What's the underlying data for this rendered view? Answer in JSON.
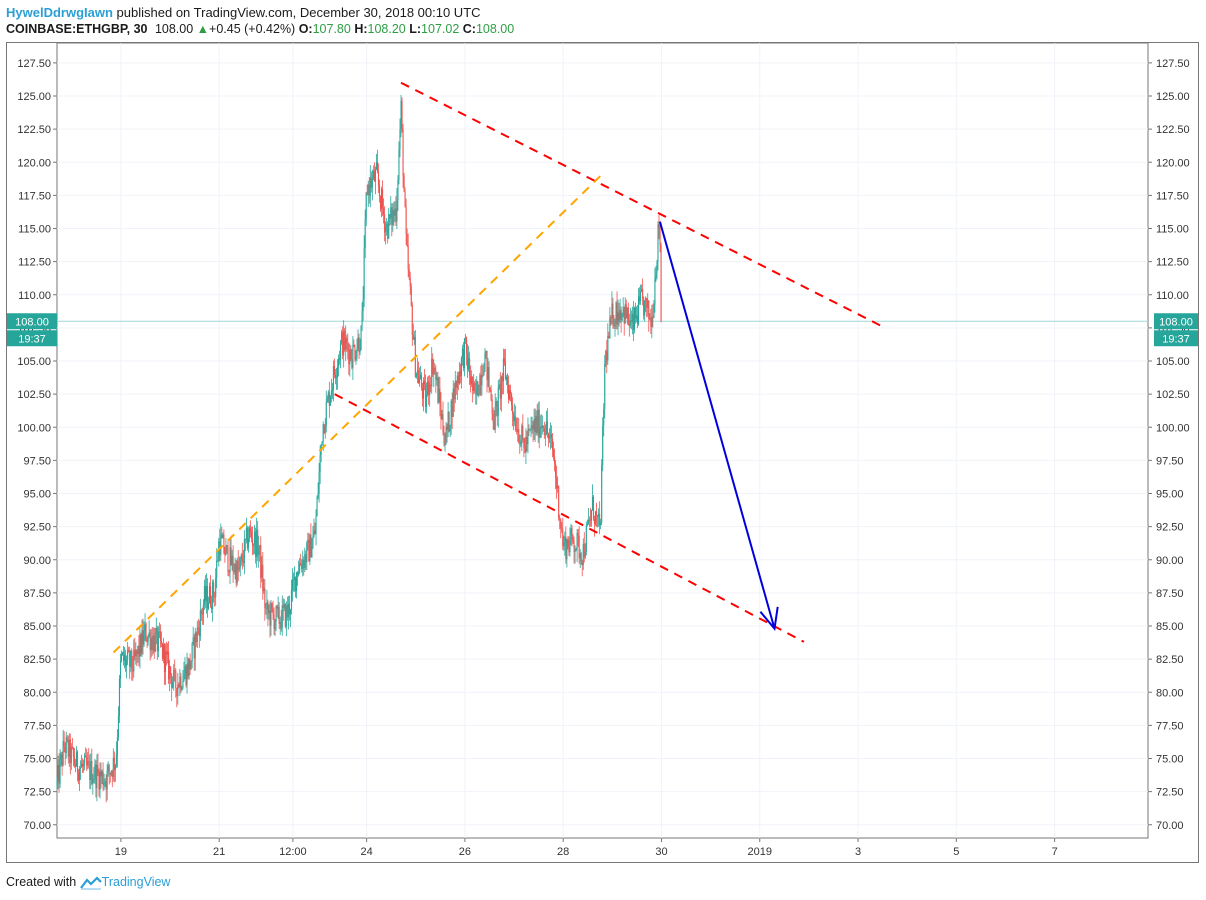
{
  "header": {
    "author": "HywelDdrwgIawn",
    "published": "published on TradingView.com, December 30, 2018 00:10 UTC",
    "symbol": "COINBASE:ETHGBP, 30",
    "last": "108.00",
    "change": "+0.45 (+0.42%)",
    "o_label": "O:",
    "o_value": "107.80",
    "h_label": "H:",
    "h_value": "108.20",
    "l_label": "L:",
    "l_value": "107.02",
    "c_label": "C:",
    "c_value": "108.00"
  },
  "footer": {
    "created": "Created with",
    "brand": "TradingView"
  },
  "chart_data": {
    "type": "candlestick",
    "symbol": "COINBASE:ETHGBP",
    "interval": "30",
    "ylim": [
      69,
      129
    ],
    "y_ticks": [
      "70.00",
      "72.50",
      "75.00",
      "77.50",
      "80.00",
      "82.50",
      "85.00",
      "87.50",
      "90.00",
      "92.50",
      "95.00",
      "97.50",
      "100.00",
      "102.50",
      "105.00",
      "107.50",
      "110.00",
      "112.50",
      "115.00",
      "117.50",
      "120.00",
      "122.50",
      "125.00",
      "127.50"
    ],
    "x_ticks": [
      {
        "label": "19",
        "day": 19
      },
      {
        "label": "21",
        "day": 21
      },
      {
        "label": "12:00",
        "day": 22.5
      },
      {
        "label": "24",
        "day": 24
      },
      {
        "label": "26",
        "day": 26
      },
      {
        "label": "28",
        "day": 28
      },
      {
        "label": "30",
        "day": 30
      },
      {
        "label": "2019",
        "day": 32
      },
      {
        "label": "3",
        "day": 34
      },
      {
        "label": "5",
        "day": 36
      },
      {
        "label": "7",
        "day": 38
      }
    ],
    "xlim_days": [
      17.7,
      39.9
    ],
    "last_price": {
      "value": 108.0,
      "label": "108.00",
      "countdown": "19:37",
      "color": "#26a69a"
    },
    "colors": {
      "up": "#26a69a",
      "down": "#ef5350",
      "grid": "#f0f3fa"
    },
    "price_path": [
      [
        17.7,
        73.0
      ],
      [
        17.85,
        76.0
      ],
      [
        18.1,
        74.5
      ],
      [
        18.4,
        74.0
      ],
      [
        18.7,
        73.5
      ],
      [
        18.9,
        75.0
      ],
      [
        19.0,
        82.5
      ],
      [
        19.25,
        82.0
      ],
      [
        19.5,
        84.5
      ],
      [
        19.8,
        83.5
      ],
      [
        20.1,
        80.5
      ],
      [
        20.4,
        82.0
      ],
      [
        20.7,
        87.0
      ],
      [
        20.9,
        87.5
      ],
      [
        21.0,
        91.5
      ],
      [
        21.2,
        90.0
      ],
      [
        21.4,
        89.0
      ],
      [
        21.6,
        92.0
      ],
      [
        21.8,
        91.0
      ],
      [
        21.95,
        86.0
      ],
      [
        22.2,
        85.5
      ],
      [
        22.4,
        86.0
      ],
      [
        22.6,
        89.5
      ],
      [
        22.8,
        90.5
      ],
      [
        22.95,
        92.0
      ],
      [
        23.1,
        100.0
      ],
      [
        23.3,
        103.5
      ],
      [
        23.5,
        106.5
      ],
      [
        23.7,
        105.5
      ],
      [
        23.9,
        107.0
      ],
      [
        24.0,
        118.0
      ],
      [
        24.2,
        119.0
      ],
      [
        24.4,
        115.0
      ],
      [
        24.6,
        116.5
      ],
      [
        24.7,
        124.0
      ],
      [
        24.8,
        114.0
      ],
      [
        25.0,
        104.5
      ],
      [
        25.2,
        102.0
      ],
      [
        25.35,
        105.0
      ],
      [
        25.6,
        99.0
      ],
      [
        25.8,
        103.0
      ],
      [
        26.0,
        106.0
      ],
      [
        26.2,
        102.0
      ],
      [
        26.4,
        105.5
      ],
      [
        26.6,
        100.5
      ],
      [
        26.8,
        104.5
      ],
      [
        27.0,
        101.0
      ],
      [
        27.2,
        98.5
      ],
      [
        27.4,
        100.0
      ],
      [
        27.6,
        100.5
      ],
      [
        27.8,
        98.0
      ],
      [
        28.0,
        91.0
      ],
      [
        28.2,
        91.5
      ],
      [
        28.4,
        90.5
      ],
      [
        28.6,
        94.0
      ],
      [
        28.75,
        92.0
      ],
      [
        28.85,
        105.0
      ],
      [
        29.0,
        108.5
      ],
      [
        29.2,
        109.0
      ],
      [
        29.4,
        107.5
      ],
      [
        29.6,
        109.5
      ],
      [
        29.8,
        108.0
      ],
      [
        29.9,
        113.0
      ],
      [
        29.96,
        116.0
      ],
      [
        30.0,
        108.0
      ]
    ],
    "drawings": [
      {
        "type": "trendline",
        "style": "dashed",
        "color": "#ff0000",
        "from": {
          "day": 24.7,
          "price": 126.0
        },
        "to": {
          "day": 34.55,
          "price": 107.5
        }
      },
      {
        "type": "trendline",
        "style": "dashed",
        "color": "#ff0000",
        "from": {
          "day": 23.35,
          "price": 102.5
        },
        "to": {
          "day": 32.9,
          "price": 83.8
        }
      },
      {
        "type": "trendline",
        "style": "dashed",
        "color": "#ffa500",
        "from": {
          "day": 18.85,
          "price": 83.0
        },
        "to": {
          "day": 28.85,
          "price": 119.3
        }
      },
      {
        "type": "arrow",
        "color": "#0000dd",
        "from": {
          "day": 29.97,
          "price": 115.5
        },
        "to": {
          "day": 32.3,
          "price": 84.8
        }
      }
    ]
  }
}
